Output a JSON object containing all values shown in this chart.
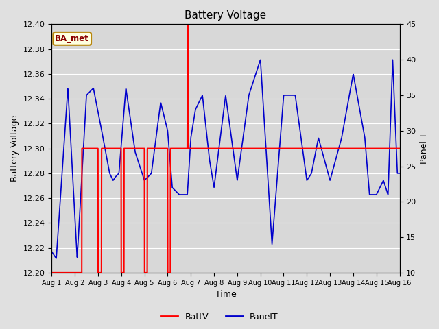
{
  "title": "Battery Voltage",
  "xlabel": "Time",
  "ylabel_left": "Battery Voltage",
  "ylabel_right": "Panel T",
  "annotation_text": "BA_met",
  "ylim_left": [
    12.2,
    12.4
  ],
  "ylim_right": [
    10,
    45
  ],
  "yticks_left": [
    12.2,
    12.22,
    12.24,
    12.26,
    12.28,
    12.3,
    12.32,
    12.34,
    12.36,
    12.38,
    12.4
  ],
  "yticks_right": [
    10,
    15,
    20,
    25,
    30,
    35,
    40,
    45
  ],
  "xtick_labels": [
    "Aug 1",
    "Aug 2",
    "Aug 3",
    "Aug 4",
    "Aug 5",
    "Aug 6",
    "Aug 7",
    "Aug 8",
    "Aug 9",
    "Aug 10",
    "Aug 11",
    "Aug 12",
    "Aug 13",
    "Aug 14",
    "Aug 15",
    "Aug 16"
  ],
  "battv_color": "#FF0000",
  "panelt_color": "#0000CC",
  "background_color": "#E0E0E0",
  "plot_bg_color": "#D8D8D8",
  "grid_color": "#FFFFFF",
  "legend_battv": "BattV",
  "legend_panelt": "PanelT"
}
